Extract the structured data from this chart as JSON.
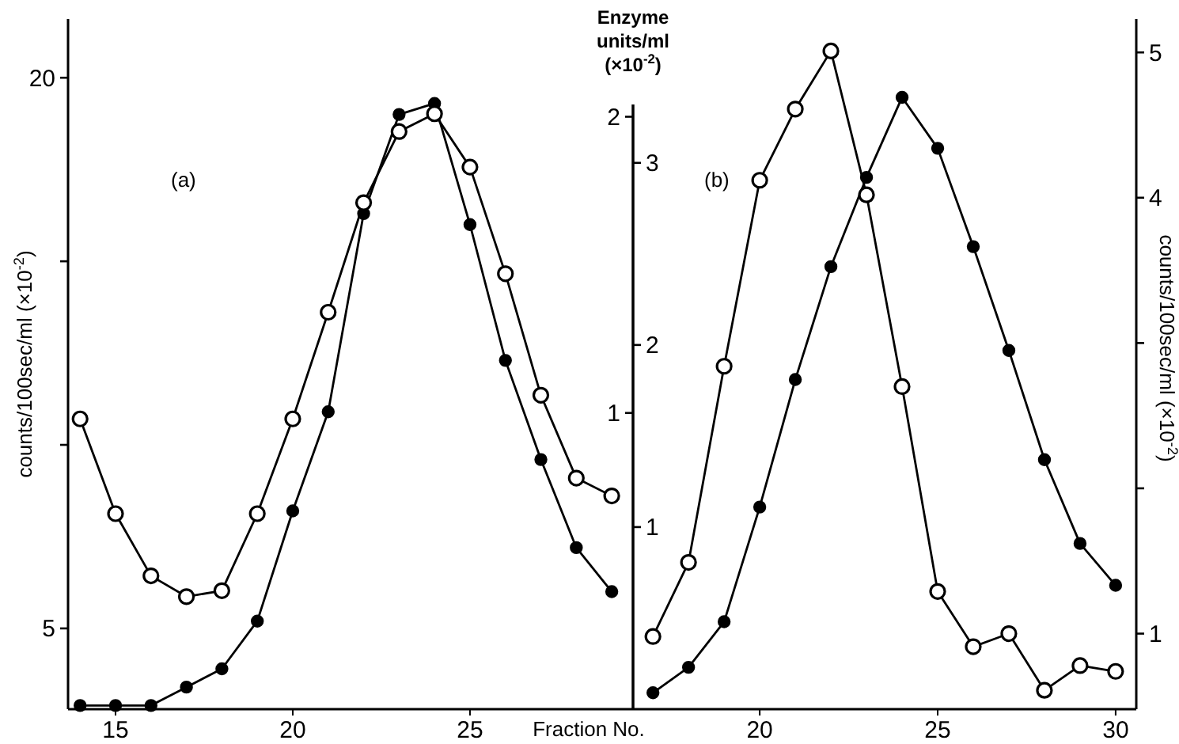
{
  "chart_data": [
    {
      "type": "line",
      "xlabel": "Fraction No.",
      "ylabel": "counts/100sec/ml (×10$^{-2}$)",
      "y2label": "Enzyme units/ml (×10$^{-2}$)",
      "annotations": [
        "(a)"
      ],
      "x": [
        14,
        15,
        16,
        17,
        18,
        19,
        20,
        21,
        22,
        23,
        24,
        25,
        26,
        27,
        28,
        29
      ],
      "xlim": [
        13.66,
        29.6
      ],
      "xticks": [
        15,
        20,
        25
      ],
      "ylim": [
        2.8,
        21.6
      ],
      "yticks": [
        5,
        {
          "value": 10,
          "label": null
        },
        {
          "value": 15,
          "label": null
        },
        20
      ],
      "y2lim": [
        0,
        2.33
      ],
      "y2ticks": [
        1,
        2
      ],
      "marker": "circle",
      "line_style": "solid",
      "series": [
        {
          "color": "#000000",
          "values": [
            2.9,
            2.9,
            2.9,
            3.4,
            3.9,
            5.2,
            8.2,
            10.9,
            16.3,
            19.0,
            19.3,
            16.0,
            12.3,
            9.6,
            7.2,
            6.0
          ]
        },
        {
          "color": "#000000",
          "axis": "y2",
          "values": [
            0.98,
            0.66,
            0.45,
            0.38,
            0.4,
            0.66,
            0.98,
            1.34,
            1.71,
            1.95,
            2.01,
            1.83,
            1.47,
            1.06,
            0.78,
            0.72
          ]
        }
      ]
    },
    {
      "type": "line",
      "y2label": "counts/100sec/ml (×10$^{-2}$)",
      "annotations": [
        "(b)"
      ],
      "x": [
        17,
        18,
        19,
        20,
        21,
        22,
        23,
        24,
        25,
        26,
        27,
        28,
        29,
        30
      ],
      "xlim": [
        16.44,
        30.58
      ],
      "xticks": [
        20,
        25,
        30
      ],
      "ylim": [
        0,
        3.79
      ],
      "yticks": [
        1,
        2,
        3
      ],
      "y2lim": [
        0.48,
        5.23
      ],
      "y2ticks": [
        1,
        {
          "value": 2,
          "label": null
        },
        {
          "value": 3,
          "label": null
        },
        4,
        5
      ],
      "marker": "circle",
      "line_style": "solid",
      "series": [
        {
          "color": "#000000",
          "values": [
            0.09,
            0.23,
            0.48,
            1.11,
            1.81,
            2.43,
            2.92,
            3.36,
            3.08,
            2.54,
            1.97,
            1.37,
            0.91,
            0.68
          ]
        },
        {
          "color": "#000000",
          "axis": "y2",
          "values": [
            0.98,
            1.49,
            2.84,
            4.12,
            4.61,
            5.01,
            4.02,
            2.7,
            1.29,
            0.91,
            1.0,
            0.61,
            0.78,
            0.74
          ]
        }
      ]
    }
  ]
}
